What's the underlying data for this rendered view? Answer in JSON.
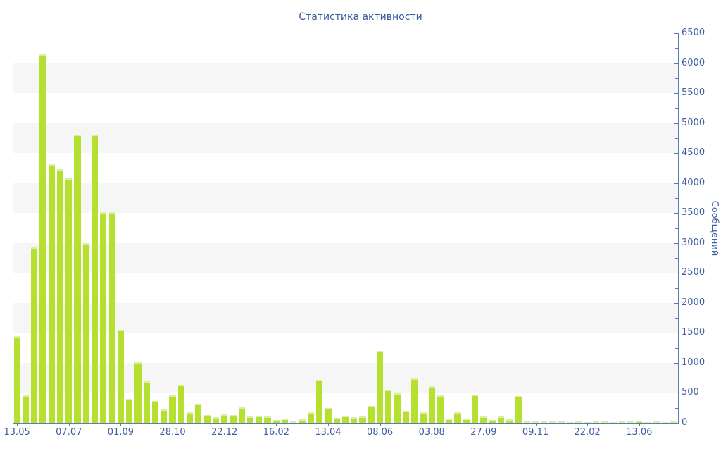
{
  "chart_data": {
    "type": "bar",
    "title": "Статистика активности",
    "ylabel": "Сообщений",
    "xlabel": "",
    "ylim": [
      0,
      6500
    ],
    "y_tick_step": 250,
    "y_label_step": 500,
    "grid": "horizontal-bands",
    "legend": "none",
    "bar_color": "#b5e02f",
    "bar_cap_color": "#d9efa4",
    "axis_color": "#5b7ab8",
    "text_color": "#3f5f9f",
    "stripe_color": "#f6f6f6",
    "x_tick_labels": [
      "13.05",
      "07.07",
      "01.09",
      "28.10",
      "22.12",
      "16.02",
      "13.04",
      "08.06",
      "03.08",
      "27.09",
      "09.11",
      "22.02",
      "13.06"
    ],
    "x_label_every_n_bars": 6,
    "values": [
      1445,
      460,
      2930,
      6145,
      4310,
      4230,
      4080,
      4810,
      3000,
      4810,
      3520,
      3520,
      1555,
      405,
      1005,
      695,
      365,
      225,
      460,
      630,
      175,
      315,
      125,
      90,
      140,
      125,
      255,
      105,
      120,
      105,
      45,
      65,
      25,
      60,
      175,
      715,
      245,
      80,
      120,
      90,
      110,
      280,
      1200,
      550,
      490,
      205,
      740,
      175,
      615,
      460,
      65,
      175,
      65,
      470,
      105,
      45,
      100,
      60,
      445,
      20,
      25,
      20,
      20,
      25,
      15,
      20,
      15,
      25,
      20,
      15,
      25,
      20,
      30,
      15,
      20,
      15,
      25
    ]
  }
}
